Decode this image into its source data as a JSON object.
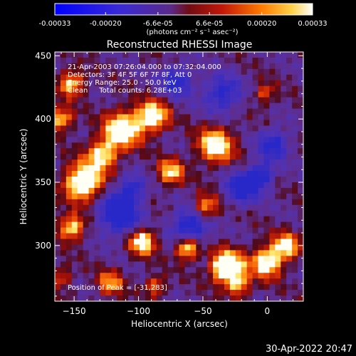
{
  "chart_data": {
    "type": "heatmap",
    "title": "Reconstructed RHESSI Image",
    "xlabel": "Heliocentric X (arcsec)",
    "ylabel": "Heliocentric Y (arcsec)",
    "xlim": [
      -165,
      28
    ],
    "ylim": [
      256,
      453
    ],
    "x_ticks": [
      -150,
      -100,
      -50,
      0
    ],
    "y_ticks": [
      300,
      350,
      400,
      450
    ],
    "colorbar": {
      "range": [
        -0.00033,
        0.00033
      ],
      "tick_values": [
        -0.00033,
        -0.0002,
        -6.6e-05,
        6.6e-05,
        0.0002,
        0.00033
      ],
      "tick_labels": [
        "-0.00033",
        "-0.00020",
        "-6.6e-05",
        "6.6e-05",
        "0.00020",
        "0.00033"
      ],
      "unit_label": "(photons cm⁻² s⁻¹ asec⁻²)"
    },
    "info_lines": [
      "21-Apr-2003 07:26:04.000 to 07:32:04.000",
      "Detectors: 3F 4F 5F 6F 7F 8F, Att 0",
      "Energy Range: 25.0 - 50.0 keV",
      "Clean     Total counts: 6.28E+03"
    ],
    "peak_label": "Position of Peak = [-31,283]",
    "peak": {
      "x": -31,
      "y": 283
    },
    "footer_timestamp": "30-Apr-2022 20:47"
  }
}
